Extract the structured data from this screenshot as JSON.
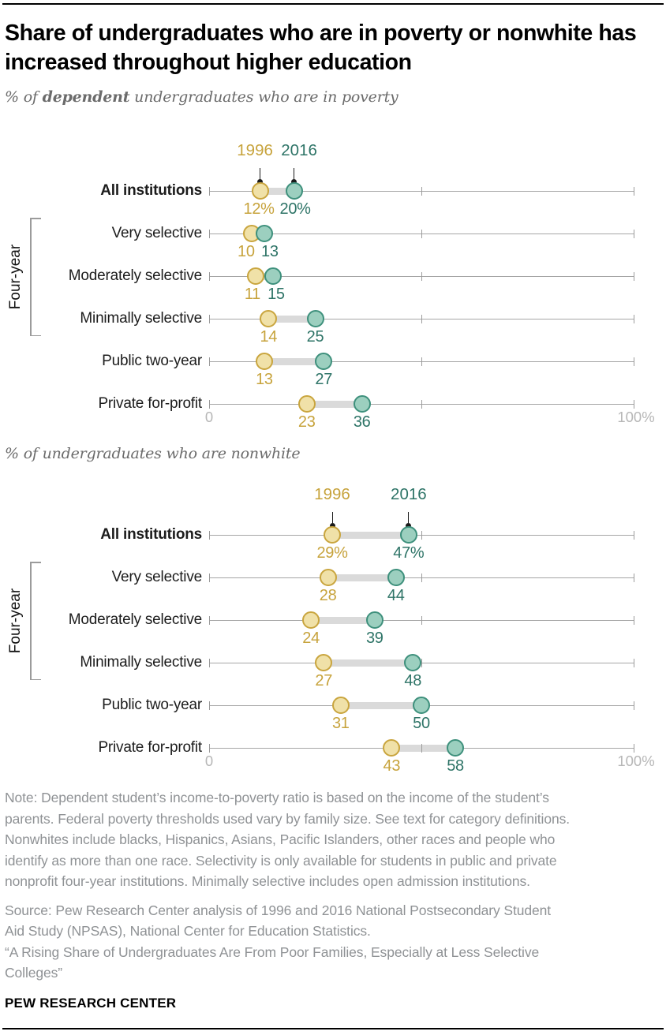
{
  "header": {
    "title": "Share of undergraduates who are in poverty or nonwhite has increased throughout higher education"
  },
  "legend": {
    "year1": "1996",
    "year2": "2016"
  },
  "axis": {
    "min": 0,
    "max": 100,
    "min_label": "0",
    "max_label": "100%",
    "mid_tick": 50
  },
  "group_label": "Four-year",
  "colors": {
    "gold_text": "#c7a33c",
    "gold_stroke": "#c9a53e",
    "gold_fill": "#f0e1a8",
    "teal_text": "#2e7467",
    "teal_stroke": "#3e907c",
    "teal_fill": "#9ccfbf",
    "line": "#a6a6a6",
    "tick": "#9b9b9b",
    "connector": "#dadada",
    "axis_label": "#b7b7b7",
    "leader": "#1a1a1a"
  },
  "chart_data": [
    {
      "type": "dumbbell",
      "title": "% of dependent undergraduates who are in poverty",
      "title_parts": {
        "pre": "% of ",
        "bold": "dependent",
        "post": " undergraduates who are in poverty"
      },
      "categories": [
        "All institutions",
        "Very selective",
        "Moderately selective",
        "Minimally selective",
        "Public two-year",
        "Private for-profit"
      ],
      "four_year_group": [
        "Very selective",
        "Moderately selective",
        "Minimally selective"
      ],
      "series": [
        {
          "name": "1996",
          "values": [
            12,
            10,
            11,
            14,
            13,
            23
          ],
          "labels": [
            "12%",
            "10",
            "11",
            "14",
            "13",
            "23"
          ]
        },
        {
          "name": "2016",
          "values": [
            20,
            13,
            15,
            25,
            27,
            36
          ],
          "labels": [
            "20%",
            "13",
            "15",
            "25",
            "27",
            "36"
          ]
        }
      ],
      "xlim": [
        0,
        100
      ],
      "grid": false,
      "legend_position": "top-inline"
    },
    {
      "type": "dumbbell",
      "title": "% of undergraduates who are nonwhite",
      "title_parts": {
        "pre": "% of undergraduates who are nonwhite",
        "bold": "",
        "post": ""
      },
      "categories": [
        "All institutions",
        "Very selective",
        "Moderately selective",
        "Minimally selective",
        "Public two-year",
        "Private for-profit"
      ],
      "four_year_group": [
        "Very selective",
        "Moderately selective",
        "Minimally selective"
      ],
      "series": [
        {
          "name": "1996",
          "values": [
            29,
            28,
            24,
            27,
            31,
            43
          ],
          "labels": [
            "29%",
            "28",
            "24",
            "27",
            "31",
            "43"
          ]
        },
        {
          "name": "2016",
          "values": [
            47,
            44,
            39,
            48,
            50,
            58
          ],
          "labels": [
            "47%",
            "44",
            "39",
            "48",
            "50",
            "58"
          ]
        }
      ],
      "xlim": [
        0,
        100
      ],
      "grid": false,
      "legend_position": "top-inline"
    }
  ],
  "footer": {
    "note": "Note: Dependent student’s income-to-poverty ratio is based on the income of the student’s\nparents. Federal poverty thresholds used vary by family size. See text for category definitions.\nNonwhites include blacks, Hispanics, Asians, Pacific Islanders, other races and people who\nidentify as more than one race. Selectivity is only available for students in public and private\nnonprofit four-year institutions. Minimally selective includes open admission institutions.",
    "source": "Source: Pew Research Center analysis of 1996 and 2016 National Postsecondary Student\nAid Study (NPSAS), National Center for Education Statistics.",
    "quote": "“A Rising Share of Undergraduates Are From Poor Families, Especially at Less Selective\nColleges”",
    "brand": "PEW RESEARCH CENTER"
  }
}
